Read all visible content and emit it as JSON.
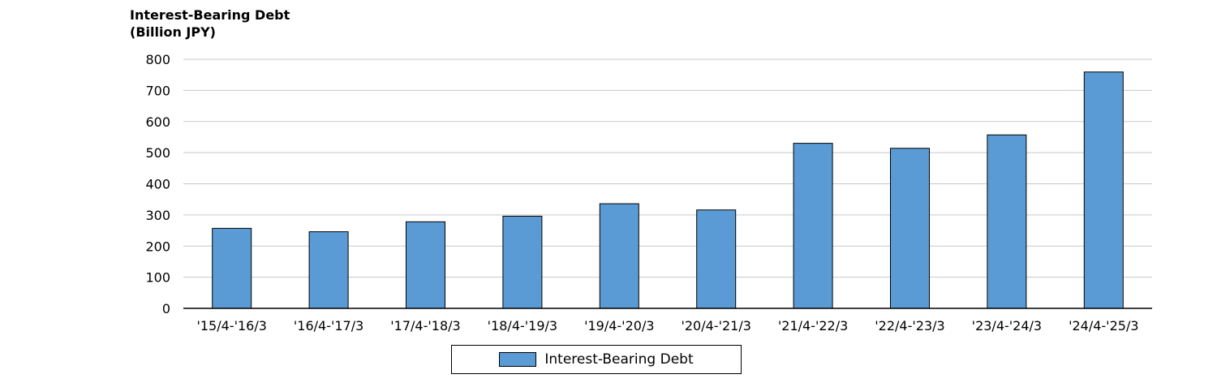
{
  "chart_data": {
    "type": "bar",
    "ylabel_lines": [
      "Interest-Bearing Debt",
      "(Billion JPY)"
    ],
    "categories": [
      "'15/4-'16/3",
      "'16/4-'17/3",
      "'17/4-'18/3",
      "'18/4-'19/3",
      "'19/4-'20/3",
      "'20/4-'21/3",
      "'21/4-'22/3",
      "'22/4-'23/3",
      "'23/4-'24/3",
      "'24/4-'25/3"
    ],
    "series": [
      {
        "name": "Interest-Bearing Debt",
        "values": [
          257,
          246,
          278,
          296,
          336,
          316,
          530,
          514,
          557,
          759
        ]
      }
    ],
    "ylim": [
      0,
      800
    ],
    "yticks": [
      0,
      100,
      200,
      300,
      400,
      500,
      600,
      700,
      800
    ],
    "grid": true,
    "legend_position": "bottom-center",
    "colors": {
      "bar": "#5b9bd5",
      "bar_edge": "#000000",
      "grid": "#c8c8c8"
    }
  }
}
